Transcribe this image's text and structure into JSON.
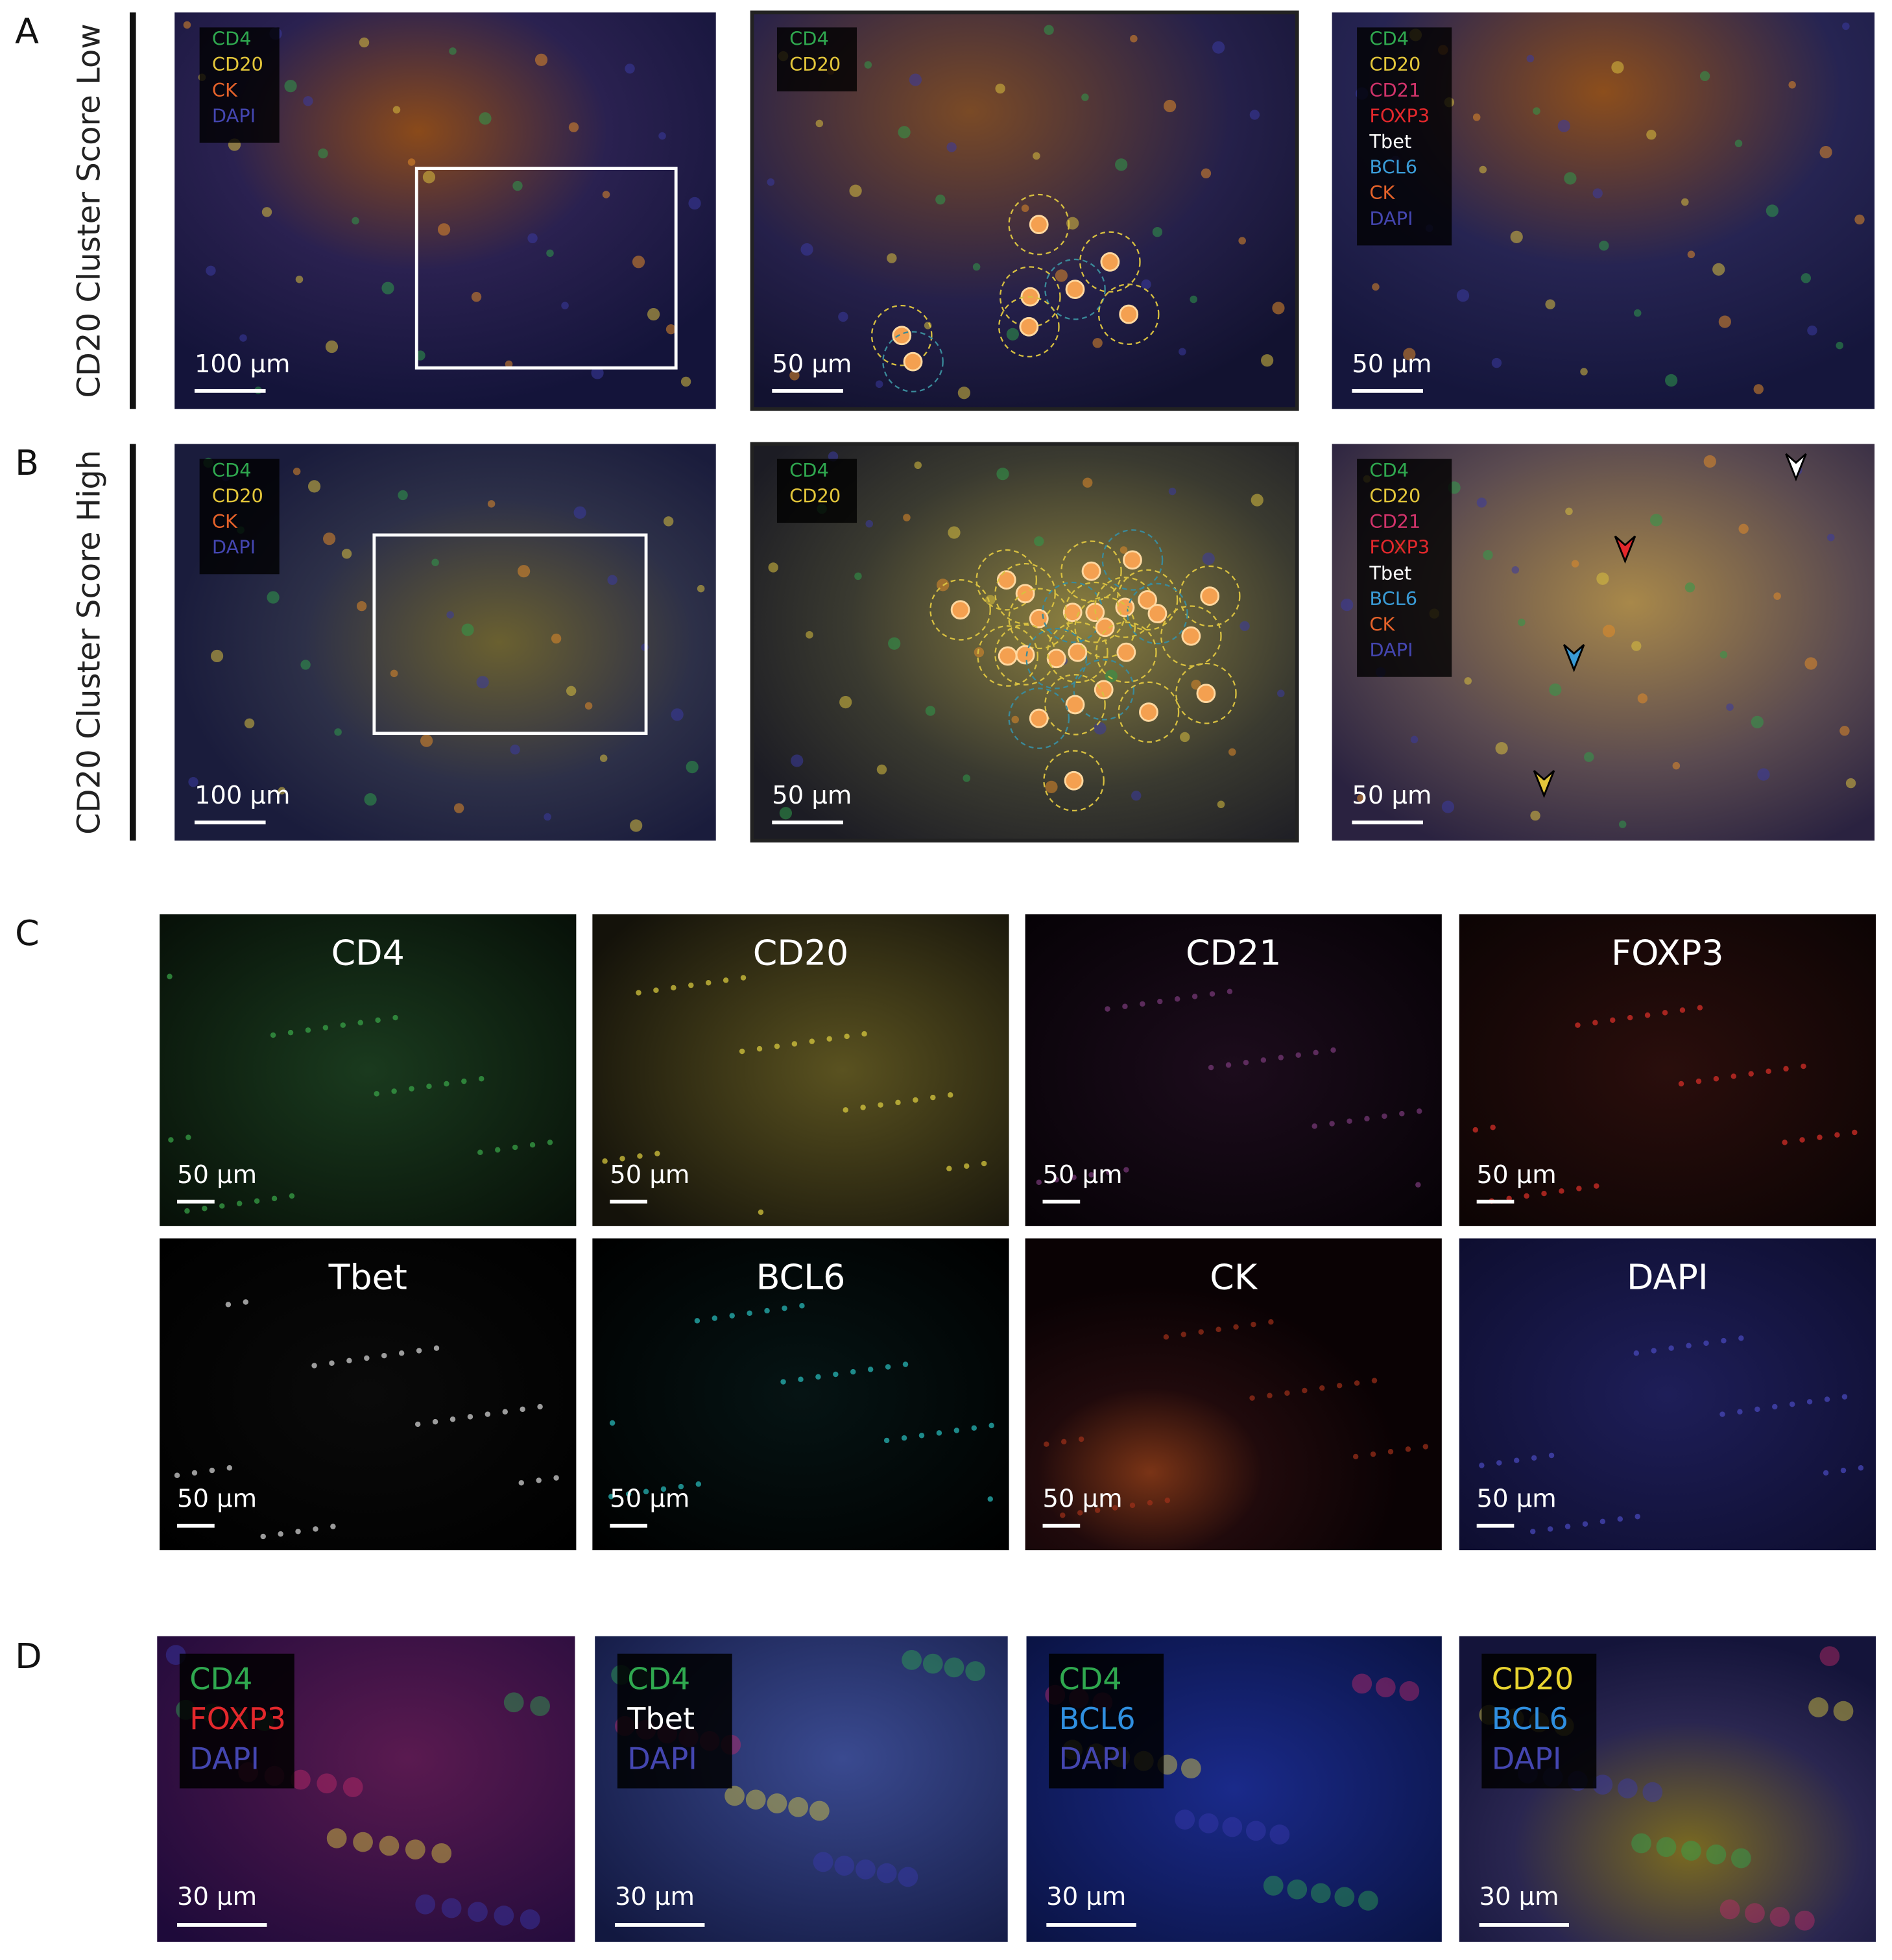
{
  "figure": {
    "rows": [
      {
        "label": "A",
        "title": "CD20 Cluster Score Low",
        "images": [
          {
            "legend": [
              {
                "text": "CD4",
                "color": "#2fa84f"
              },
              {
                "text": "CD20",
                "color": "#e3c63a"
              },
              {
                "text": "CK",
                "color": "#e5622a"
              },
              {
                "text": "DAPI",
                "color": "#4446b0"
              }
            ],
            "scale_bar": "100 µm"
          },
          {
            "legend": [
              {
                "text": "CD4",
                "color": "#2fa84f"
              },
              {
                "text": "CD20",
                "color": "#e3c63a"
              }
            ],
            "scale_bar": "50 µm"
          },
          {
            "legend": [
              {
                "text": "CD4",
                "color": "#2fa84f"
              },
              {
                "text": "CD20",
                "color": "#e3c63a"
              },
              {
                "text": "CD21",
                "color": "#d0336a"
              },
              {
                "text": "FOXP3",
                "color": "#e3282c"
              },
              {
                "text": "Tbet",
                "color": "#ffffff"
              },
              {
                "text": "BCL6",
                "color": "#3a9bd6"
              },
              {
                "text": "CK",
                "color": "#e5622a"
              },
              {
                "text": "DAPI",
                "color": "#4446b0"
              }
            ],
            "scale_bar": "50 µm"
          }
        ]
      },
      {
        "label": "B",
        "title": "CD20 Cluster Score High",
        "images": [
          {
            "legend": [
              {
                "text": "CD4",
                "color": "#2fa84f"
              },
              {
                "text": "CD20",
                "color": "#e3c63a"
              },
              {
                "text": "CK",
                "color": "#e5622a"
              },
              {
                "text": "DAPI",
                "color": "#4446b0"
              }
            ],
            "scale_bar": "100 µm"
          },
          {
            "legend": [
              {
                "text": "CD4",
                "color": "#2fa84f"
              },
              {
                "text": "CD20",
                "color": "#e3c63a"
              }
            ],
            "scale_bar": "50 µm"
          },
          {
            "legend": [
              {
                "text": "CD4",
                "color": "#2fa84f"
              },
              {
                "text": "CD20",
                "color": "#e3c63a"
              },
              {
                "text": "CD21",
                "color": "#d0336a"
              },
              {
                "text": "FOXP3",
                "color": "#e3282c"
              },
              {
                "text": "Tbet",
                "color": "#ffffff"
              },
              {
                "text": "BCL6",
                "color": "#3a9bd6"
              },
              {
                "text": "CK",
                "color": "#e5622a"
              },
              {
                "text": "DAPI",
                "color": "#4446b0"
              }
            ],
            "scale_bar": "50 µm"
          }
        ]
      }
    ],
    "channels": {
      "label": "C",
      "images": [
        {
          "title": "CD4",
          "scale_bar": "50 µm"
        },
        {
          "title": "CD20",
          "scale_bar": "50 µm"
        },
        {
          "title": "CD21",
          "scale_bar": "50 µm"
        },
        {
          "title": "FOXP3",
          "scale_bar": "50 µm"
        },
        {
          "title": "Tbet",
          "scale_bar": "50 µm"
        },
        {
          "title": "BCL6",
          "scale_bar": "50 µm"
        },
        {
          "title": "CK",
          "scale_bar": "50 µm"
        },
        {
          "title": "DAPI",
          "scale_bar": "50 µm"
        }
      ]
    },
    "insets": {
      "label": "D",
      "images": [
        {
          "legend": [
            {
              "text": "CD4",
              "color": "#2fa84f"
            },
            {
              "text": "FOXP3",
              "color": "#e3282c"
            },
            {
              "text": "DAPI",
              "color": "#4446b0"
            }
          ],
          "scale_bar": "30 µm"
        },
        {
          "legend": [
            {
              "text": "CD4",
              "color": "#2fa84f"
            },
            {
              "text": "Tbet",
              "color": "#ffffff"
            },
            {
              "text": "DAPI",
              "color": "#4446b0"
            }
          ],
          "scale_bar": "30 µm"
        },
        {
          "legend": [
            {
              "text": "CD4",
              "color": "#2fa84f"
            },
            {
              "text": "BCL6",
              "color": "#2f8fe0"
            },
            {
              "text": "DAPI",
              "color": "#4446b0"
            }
          ],
          "scale_bar": "30 µm"
        },
        {
          "legend": [
            {
              "text": "CD20",
              "color": "#e8d430"
            },
            {
              "text": "BCL6",
              "color": "#2f8fe0"
            },
            {
              "text": "DAPI",
              "color": "#4446b0"
            }
          ],
          "scale_bar": "30 µm"
        }
      ]
    }
  }
}
